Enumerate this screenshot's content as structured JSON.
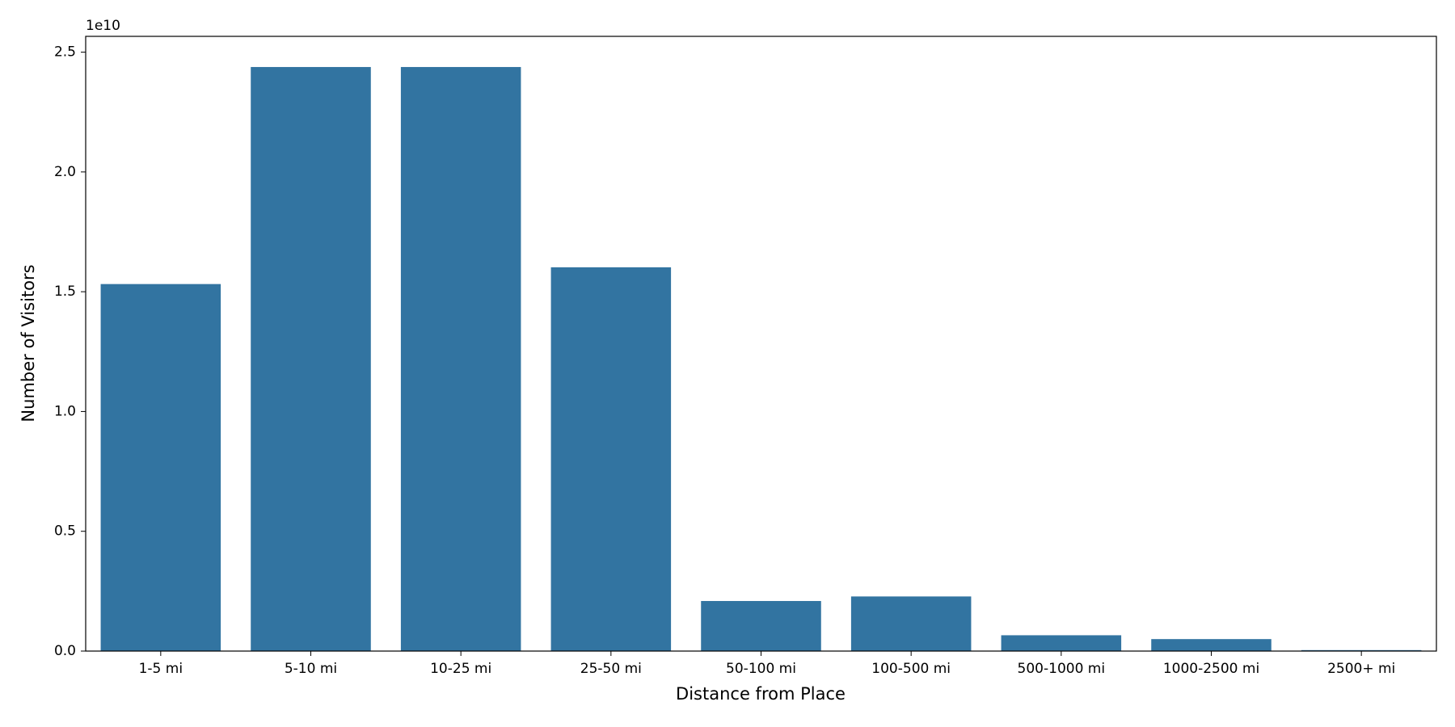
{
  "chart_data": {
    "type": "bar",
    "x_label": "Distance from Place",
    "y_label": "Number of Visitors",
    "y_offset_label": "1e10",
    "categories": [
      "1-5 mi",
      "5-10 mi",
      "10-25 mi",
      "25-50 mi",
      "50-100 mi",
      "100-500 mi",
      "500-1000 mi",
      "1000-2500 mi",
      "2500+ mi"
    ],
    "values": [
      1.532,
      2.438,
      2.438,
      1.602,
      0.209,
      0.228,
      0.066,
      0.05,
      0.004
    ],
    "color": "#3274a1",
    "ylim": [
      0,
      2.566
    ],
    "yticks": [
      {
        "value": 0,
        "label": "0.0"
      },
      0.5,
      {
        "value": 1,
        "label": "1.0"
      },
      1.5,
      {
        "value": 2,
        "label": "2.0"
      },
      2.5
    ],
    "grid": false
  }
}
